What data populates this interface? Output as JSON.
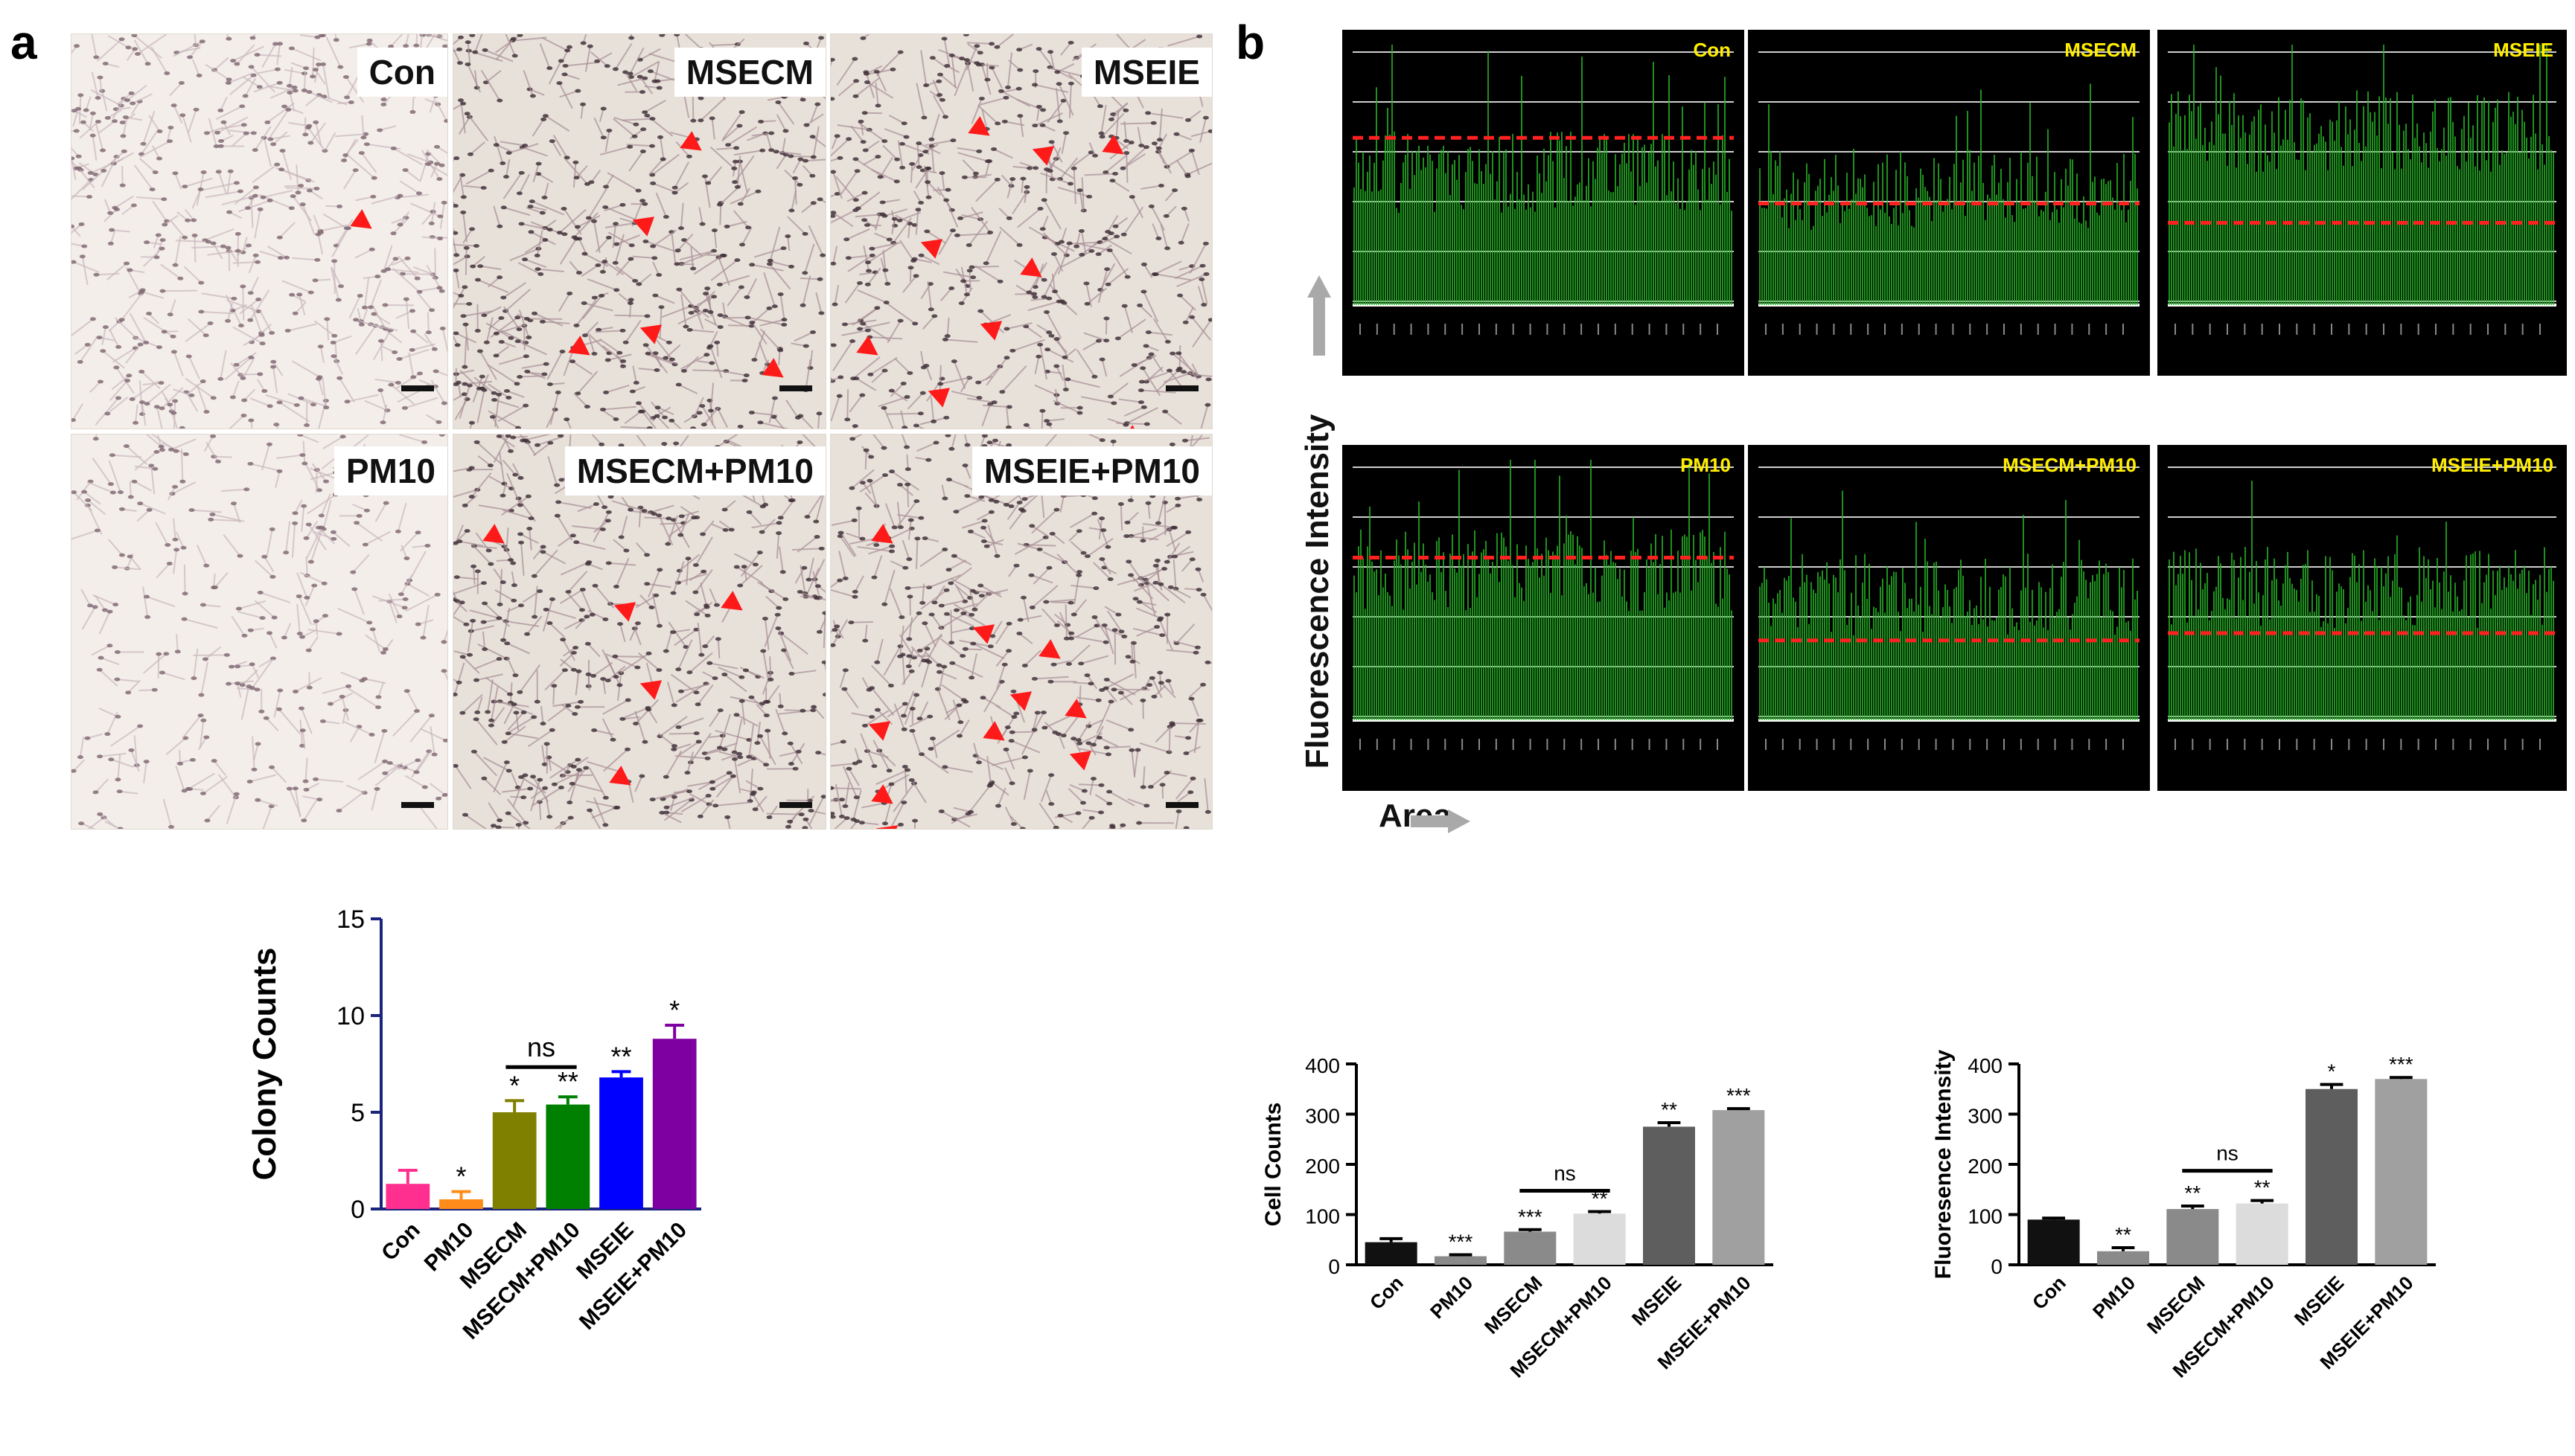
{
  "panel_a": {
    "letter": "a",
    "images": [
      "Con",
      "MSECM",
      "MSEIE",
      "PM10",
      "MSECM+PM10",
      "MSEIE+PM10"
    ]
  },
  "panel_b": {
    "letter": "b",
    "images": [
      "Con",
      "MSECM",
      "MSEIE",
      "PM10",
      "MSECM+PM10",
      "MSEIE+PM10"
    ],
    "y_arrow_label": "Fluorescence Intensity",
    "x_arrow_label": "Area"
  },
  "colors": {
    "con": "#ff2f8f",
    "pm10": "#ff8c1a",
    "msecm": "#808000",
    "msecm_pm10": "#008000",
    "mseie": "#0000ff",
    "mseie_pm10": "#7f00a0",
    "dark": "#111111",
    "gray1": "#8a8a8a",
    "gray2": "#b0b0b0",
    "gray3": "#dcdcdc",
    "gray4": "#5e5e5e",
    "gray5": "#a0a0a0",
    "fluo_green": "#27b427",
    "dash_red": "#ff2020"
  },
  "chart_data": [
    {
      "type": "bar",
      "ylabel": "Colony Counts",
      "categories": [
        "Con",
        "PM10",
        "MSECM",
        "MSECM+PM10",
        "MSEIE",
        "MSEIE+PM10"
      ],
      "values": [
        1.3,
        0.5,
        5.0,
        5.4,
        6.8,
        8.8
      ],
      "errors": [
        0.7,
        0.4,
        0.6,
        0.4,
        0.3,
        0.7
      ],
      "sig": [
        "",
        "*",
        "*",
        "**",
        "**",
        "*"
      ],
      "ylim": [
        0,
        15
      ],
      "yticks": [
        "0",
        "5",
        "10",
        "15"
      ],
      "bracket": {
        "from": 2,
        "to": 3,
        "label": "ns"
      }
    },
    {
      "type": "bar",
      "ylabel": "Cell Counts",
      "categories": [
        "Con",
        "PM10",
        "MSECM",
        "MSECM+PM10",
        "MSEIE",
        "MSEIE+PM10"
      ],
      "values": [
        45,
        17,
        66,
        102,
        275,
        308
      ],
      "errors": [
        7,
        3,
        4,
        4,
        8,
        3
      ],
      "sig": [
        "",
        "***",
        "***",
        "**",
        "**",
        "***"
      ],
      "ylim": [
        0,
        400
      ],
      "yticks": [
        "0",
        "100",
        "200",
        "300",
        "400"
      ],
      "bracket": {
        "from": 2,
        "to": 3,
        "label": "ns"
      }
    },
    {
      "type": "bar",
      "ylabel": "Fluoresence Intensity",
      "categories": [
        "Con",
        "PM10",
        "MSECM",
        "MSECM+PM10",
        "MSEIE",
        "MSEIE+PM10"
      ],
      "values": [
        90,
        27,
        111,
        122,
        350,
        370
      ],
      "errors": [
        3,
        7,
        6,
        6,
        9,
        3
      ],
      "sig": [
        "",
        "**",
        "**",
        "**",
        "*",
        "***"
      ],
      "ylim": [
        0,
        400
      ],
      "yticks": [
        "0",
        "100",
        "200",
        "300",
        "400"
      ],
      "bracket": {
        "from": 2,
        "to": 3,
        "label": "ns"
      }
    }
  ]
}
